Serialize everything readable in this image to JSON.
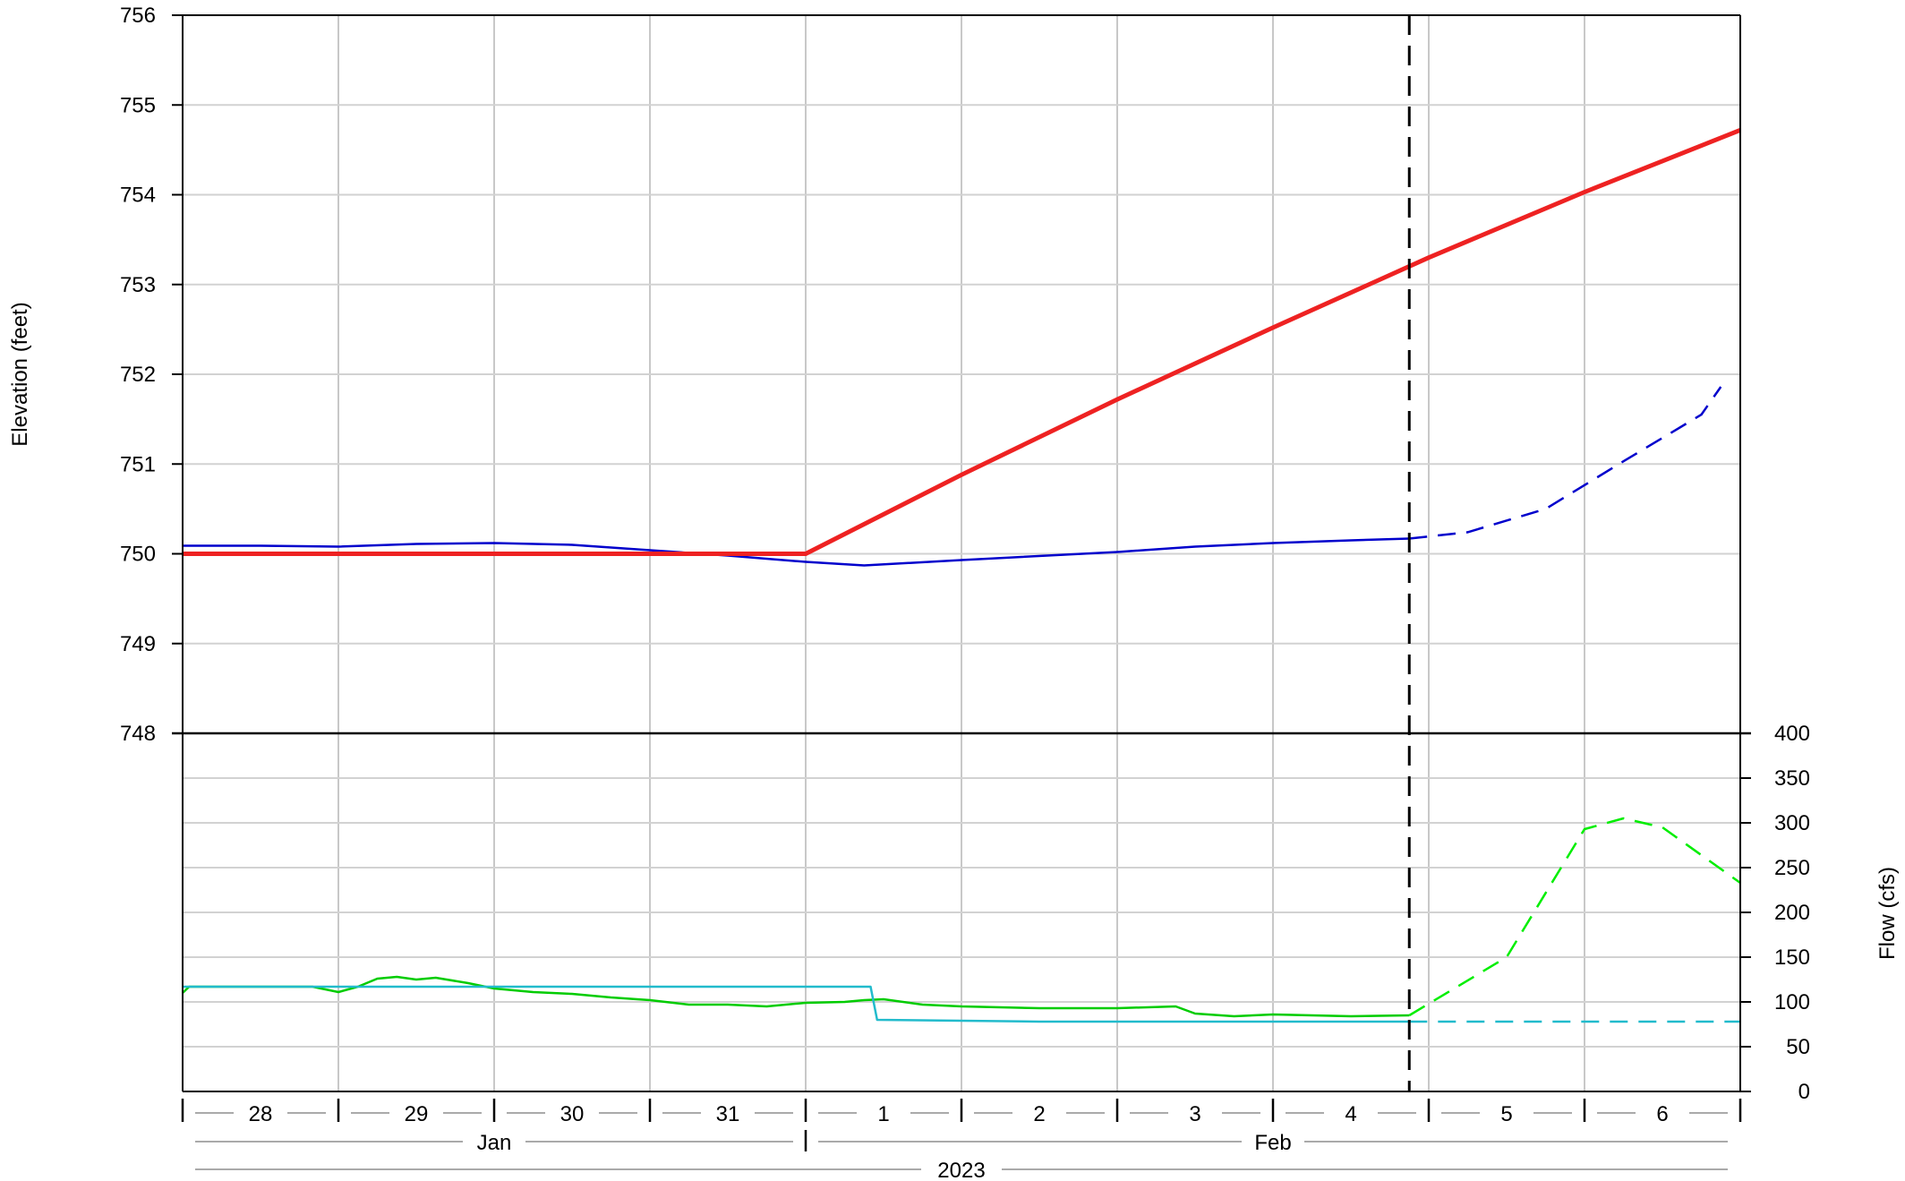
{
  "chart_data": [
    {
      "type": "line",
      "panel": "elevation",
      "ylabel": "Elevation (feet)",
      "ylim": [
        748,
        756
      ],
      "yticks": [
        748,
        749,
        750,
        751,
        752,
        753,
        754,
        755,
        756
      ],
      "xlim": [
        "2023-01-28T00:00",
        "2023-02-07T00:00"
      ],
      "grid": true,
      "forecast_start": "2023-02-04T21:00",
      "series": [
        {
          "color": "#0000cc",
          "style": "solid",
          "points": [
            [
              "2023-01-28T00:00",
              750.09
            ],
            [
              "2023-01-28T12:00",
              750.09
            ],
            [
              "2023-01-29T00:00",
              750.08
            ],
            [
              "2023-01-29T12:00",
              750.11
            ],
            [
              "2023-01-30T00:00",
              750.12
            ],
            [
              "2023-01-30T12:00",
              750.1
            ],
            [
              "2023-01-31T00:00",
              750.04
            ],
            [
              "2023-01-31T12:00",
              749.98
            ],
            [
              "2023-02-01T00:00",
              749.91
            ],
            [
              "2023-02-01T09:00",
              749.87
            ],
            [
              "2023-02-02T00:00",
              749.93
            ],
            [
              "2023-02-03T00:00",
              750.02
            ],
            [
              "2023-02-03T12:00",
              750.08
            ],
            [
              "2023-02-04T00:00",
              750.12
            ],
            [
              "2023-02-04T12:00",
              750.15
            ],
            [
              "2023-02-04T21:00",
              750.17
            ]
          ]
        },
        {
          "color": "#0000cc",
          "style": "dashed",
          "points": [
            [
              "2023-02-04T21:00",
              750.17
            ],
            [
              "2023-02-05T06:00",
              750.24
            ],
            [
              "2023-02-05T18:00",
              750.5
            ],
            [
              "2023-02-06T06:00",
              751.03
            ],
            [
              "2023-02-06T18:00",
              751.55
            ],
            [
              "2023-02-06T21:00",
              751.86
            ]
          ]
        },
        {
          "color": "#ee2222",
          "style": "thick",
          "points": [
            [
              "2023-01-28T00:00",
              750.0
            ],
            [
              "2023-02-01T00:00",
              750.0
            ],
            [
              "2023-02-02T00:00",
              750.88
            ],
            [
              "2023-02-03T00:00",
              751.72
            ],
            [
              "2023-02-04T00:00",
              752.52
            ],
            [
              "2023-02-05T00:00",
              753.3
            ],
            [
              "2023-02-06T00:00",
              754.03
            ],
            [
              "2023-02-07T00:00",
              754.72
            ]
          ]
        }
      ]
    },
    {
      "type": "line",
      "panel": "flow",
      "ylabel": "Flow (cfs)",
      "ylim": [
        0,
        400
      ],
      "yticks": [
        0,
        50,
        100,
        150,
        200,
        250,
        300,
        350,
        400
      ],
      "xlim": [
        "2023-01-28T00:00",
        "2023-02-07T00:00"
      ],
      "grid": true,
      "forecast_start": "2023-02-04T21:00",
      "series": [
        {
          "color": "#00cc00",
          "style": "solid",
          "points": [
            [
              "2023-01-28T00:00",
              110
            ],
            [
              "2023-01-28T01:00",
              117
            ],
            [
              "2023-01-28T20:00",
              117
            ],
            [
              "2023-01-29T00:00",
              111
            ],
            [
              "2023-01-29T03:00",
              117
            ],
            [
              "2023-01-29T06:00",
              126
            ],
            [
              "2023-01-29T09:00",
              128
            ],
            [
              "2023-01-29T12:00",
              125
            ],
            [
              "2023-01-29T15:00",
              127
            ],
            [
              "2023-01-29T20:00",
              121
            ],
            [
              "2023-01-30T00:00",
              115
            ],
            [
              "2023-01-30T06:00",
              111
            ],
            [
              "2023-01-30T12:00",
              109
            ],
            [
              "2023-01-30T18:00",
              105
            ],
            [
              "2023-01-31T00:00",
              102
            ],
            [
              "2023-01-31T06:00",
              97
            ],
            [
              "2023-01-31T12:00",
              97
            ],
            [
              "2023-01-31T18:00",
              95
            ],
            [
              "2023-02-01T00:00",
              99
            ],
            [
              "2023-02-01T06:00",
              100
            ],
            [
              "2023-02-01T09:00",
              102
            ],
            [
              "2023-02-01T12:00",
              103
            ],
            [
              "2023-02-01T18:00",
              97
            ],
            [
              "2023-02-02T00:00",
              95
            ],
            [
              "2023-02-02T12:00",
              93
            ],
            [
              "2023-02-03T00:00",
              93
            ],
            [
              "2023-02-03T09:00",
              95
            ],
            [
              "2023-02-03T12:00",
              87
            ],
            [
              "2023-02-03T18:00",
              84
            ],
            [
              "2023-02-04T00:00",
              86
            ],
            [
              "2023-02-04T12:00",
              84
            ],
            [
              "2023-02-04T21:00",
              85
            ]
          ]
        },
        {
          "color": "#00ee00",
          "style": "dashed",
          "points": [
            [
              "2023-02-04T21:00",
              85
            ],
            [
              "2023-02-05T12:00",
              150
            ],
            [
              "2023-02-06T00:00",
              293
            ],
            [
              "2023-02-06T06:00",
              305
            ],
            [
              "2023-02-06T12:00",
              295
            ],
            [
              "2023-02-07T00:00",
              233
            ]
          ]
        },
        {
          "color": "#22bbcc",
          "style": "solid",
          "points": [
            [
              "2023-01-28T00:00",
              117
            ],
            [
              "2023-02-01T10:00",
              117
            ],
            [
              "2023-02-01T11:00",
              80
            ],
            [
              "2023-02-02T12:00",
              78
            ],
            [
              "2023-02-04T21:00",
              78
            ]
          ]
        },
        {
          "color": "#22bbcc",
          "style": "dashed",
          "points": [
            [
              "2023-02-04T21:00",
              78
            ],
            [
              "2023-02-07T00:00",
              78
            ]
          ]
        }
      ]
    }
  ],
  "x_axis": {
    "day_labels": [
      "28",
      "29",
      "30",
      "31",
      "1",
      "2",
      "3",
      "4",
      "5",
      "6"
    ],
    "month_labels": [
      "Jan",
      "Feb"
    ],
    "year_label": "2023"
  }
}
